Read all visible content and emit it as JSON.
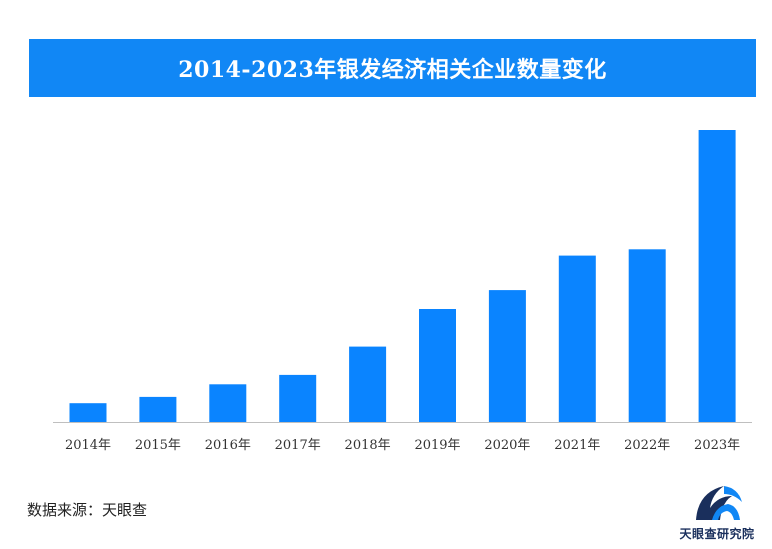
{
  "chart_data": {
    "type": "bar",
    "title": "2014-2023年银发经济相关企业数量变化",
    "categories": [
      "2014年",
      "2015年",
      "2016年",
      "2017年",
      "2018年",
      "2019年",
      "2020年",
      "2021年",
      "2022年",
      "2023年"
    ],
    "values": [
      6,
      8,
      12,
      15,
      24,
      36,
      42,
      53,
      55,
      93
    ],
    "ylim": [
      0,
      100
    ],
    "grid": false,
    "bar_color": "#0a84ff",
    "title_bg": "#1187f5"
  },
  "source": "数据来源：天眼查",
  "logo": {
    "text": "天眼查研究院",
    "icon": "tianyancha-logo-icon"
  }
}
